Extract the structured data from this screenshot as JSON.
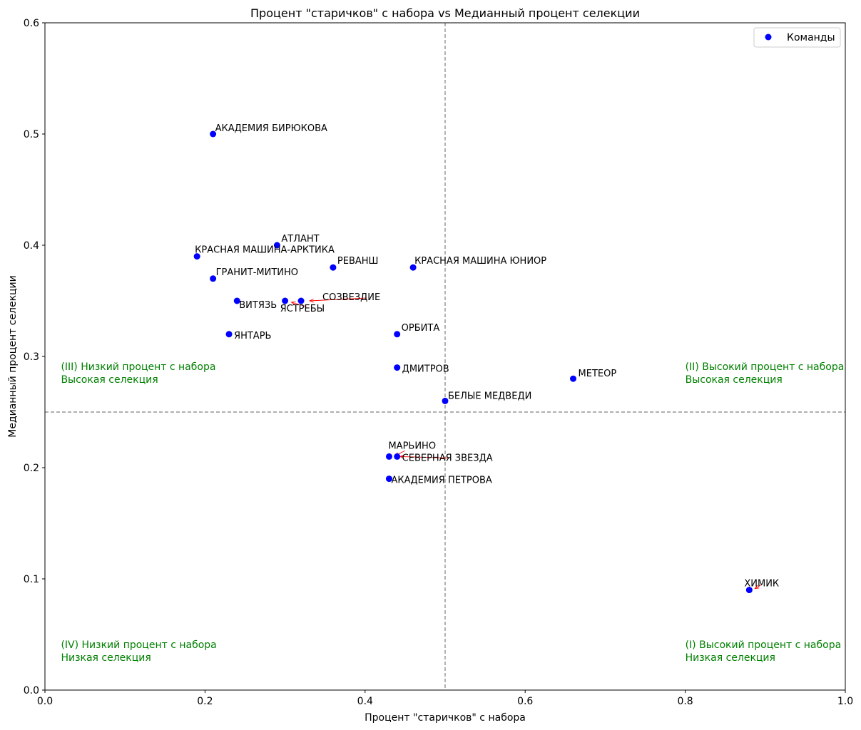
{
  "chart_data": {
    "type": "scatter",
    "title": "Процент \"старичков\" с набора vs Медианный процент селекции",
    "xlabel": "Процент \"старичков\" с набора",
    "ylabel": "Медианный процент селекции",
    "xlim": [
      0.0,
      1.0
    ],
    "ylim": [
      0.0,
      0.6
    ],
    "x_ticks": [
      0.0,
      0.2,
      0.4,
      0.6,
      0.8,
      1.0
    ],
    "x_tick_labels": [
      "0.0",
      "0.2",
      "0.4",
      "0.6",
      "0.8",
      "1.0"
    ],
    "y_ticks": [
      0.0,
      0.1,
      0.2,
      0.3,
      0.4,
      0.5,
      0.6
    ],
    "y_tick_labels": [
      "0.0",
      "0.1",
      "0.2",
      "0.3",
      "0.4",
      "0.5",
      "0.6"
    ],
    "grid": false,
    "legend": {
      "position": "top-right",
      "label": "Команды"
    },
    "reference_lines": {
      "x": 0.5,
      "y": 0.25,
      "style": "dashed",
      "color": "#808080"
    },
    "colors": {
      "points": "#0000ff",
      "quadrant_text": "#008000",
      "arrows": "#ff0000"
    },
    "series": [
      {
        "name": "Команды",
        "points": [
          {
            "x": 0.21,
            "y": 0.5,
            "label": "АКАДЕМИЯ БИРЮКОВА"
          },
          {
            "x": 0.29,
            "y": 0.4,
            "label": "АТЛАНТ"
          },
          {
            "x": 0.19,
            "y": 0.39,
            "label": "КРАСНАЯ МАШИНА-АРКТИКА"
          },
          {
            "x": 0.36,
            "y": 0.38,
            "label": "РЕВАНШ"
          },
          {
            "x": 0.46,
            "y": 0.38,
            "label": "КРАСНАЯ МАШИНА ЮНИОР"
          },
          {
            "x": 0.21,
            "y": 0.37,
            "label": "ГРАНИТ-МИТИНО"
          },
          {
            "x": 0.24,
            "y": 0.35,
            "label": "ВИТЯЗЬ"
          },
          {
            "x": 0.3,
            "y": 0.35,
            "label": "ЯСТРЕБЫ"
          },
          {
            "x": 0.32,
            "y": 0.35,
            "label": "СОЗВЕЗДИЕ"
          },
          {
            "x": 0.23,
            "y": 0.32,
            "label": "ЯНТАРЬ"
          },
          {
            "x": 0.44,
            "y": 0.32,
            "label": "ОРБИТА"
          },
          {
            "x": 0.44,
            "y": 0.29,
            "label": "ДМИТРОВ"
          },
          {
            "x": 0.66,
            "y": 0.28,
            "label": "МЕТЕОР"
          },
          {
            "x": 0.5,
            "y": 0.26,
            "label": "БЕЛЫЕ МЕДВЕДИ"
          },
          {
            "x": 0.43,
            "y": 0.21,
            "label": "МАРЬИНО"
          },
          {
            "x": 0.44,
            "y": 0.21,
            "label": "СЕВЕРНАЯ ЗВЕЗДА"
          },
          {
            "x": 0.43,
            "y": 0.19,
            "label": "АКАДЕМИЯ ПЕТРОВА"
          },
          {
            "x": 0.88,
            "y": 0.09,
            "label": "ХИМИК"
          }
        ]
      }
    ],
    "annotations": [
      {
        "x": 0.02,
        "y": 0.28,
        "lines": [
          "(III) Низкий процент с набора",
          "Высокая селекция"
        ]
      },
      {
        "x": 0.8,
        "y": 0.28,
        "lines": [
          "(II) Высокий процент с набора",
          "Высокая селекция"
        ]
      },
      {
        "x": 0.02,
        "y": 0.03,
        "lines": [
          "(IV) Низкий процент с набора",
          "Низкая селекция"
        ]
      },
      {
        "x": 0.8,
        "y": 0.03,
        "lines": [
          "(I) Высокий процент с набора",
          "Низкая селекция"
        ]
      }
    ]
  }
}
